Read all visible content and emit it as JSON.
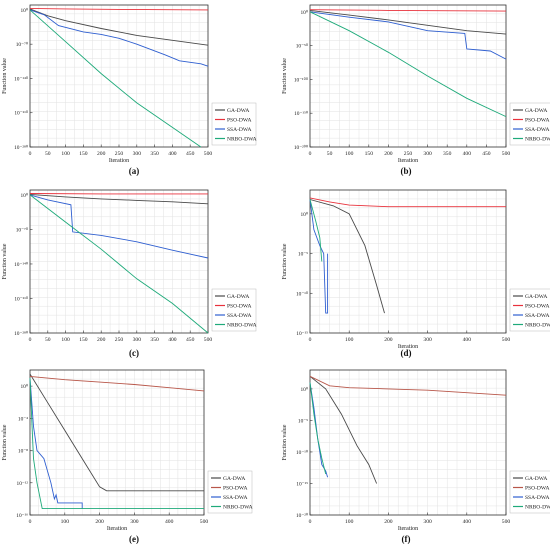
{
  "chart_data": [
    {
      "panel_label": "(a)",
      "type": "line",
      "xlabel": "Iteration",
      "ylabel": "Function value",
      "yscale": "log",
      "xlim": [
        0,
        500
      ],
      "ylim_exp": [
        -280,
        10
      ],
      "x_ticks": [
        "0",
        "50",
        "100",
        "150",
        "200",
        "250",
        "300",
        "350",
        "400",
        "450",
        "500"
      ],
      "y_ticks": [
        {
          "exp": 0,
          "label": "10⁰"
        },
        {
          "exp": -70,
          "label": "10⁻⁷⁰"
        },
        {
          "exp": -140,
          "label": "10⁻¹⁴⁰"
        },
        {
          "exp": -210,
          "label": "10⁻²¹⁰"
        },
        {
          "exp": -280,
          "label": "10⁻²⁸⁰"
        }
      ],
      "grid": true,
      "legend_position": "bottom-right",
      "series": [
        {
          "name": "GA-DWA",
          "color": "#4a4a4a",
          "points": [
            [
              0,
              2
            ],
            [
              50,
              -12
            ],
            [
              100,
              -22
            ],
            [
              200,
              -38
            ],
            [
              300,
              -52
            ],
            [
              400,
              -62
            ],
            [
              500,
              -72
            ]
          ]
        },
        {
          "name": "PSO-DWA",
          "color": "#e8323c",
          "points": [
            [
              0,
              3
            ],
            [
              100,
              2
            ],
            [
              250,
              1
            ],
            [
              500,
              0
            ]
          ]
        },
        {
          "name": "SSA-DWA",
          "color": "#2f5fd0",
          "points": [
            [
              0,
              0
            ],
            [
              40,
              -10
            ],
            [
              80,
              -32
            ],
            [
              150,
              -45
            ],
            [
              200,
              -50
            ],
            [
              250,
              -58
            ],
            [
              300,
              -70
            ],
            [
              380,
              -92
            ],
            [
              420,
              -104
            ],
            [
              480,
              -110
            ],
            [
              500,
              -115
            ]
          ]
        },
        {
          "name": "NRBO-DWA",
          "color": "#1faa7a",
          "points": [
            [
              0,
              0
            ],
            [
              100,
              -65
            ],
            [
              200,
              -130
            ],
            [
              300,
              -190
            ],
            [
              400,
              -240
            ],
            [
              480,
              -280
            ]
          ]
        }
      ]
    },
    {
      "panel_label": "(b)",
      "type": "line",
      "xlabel": "Iteration",
      "ylabel": "Function value",
      "yscale": "log",
      "xlim": [
        0,
        500
      ],
      "ylim_exp": [
        -200,
        10
      ],
      "x_ticks": [
        "0",
        "50",
        "100",
        "150",
        "200",
        "250",
        "300",
        "350",
        "400",
        "450",
        "500"
      ],
      "y_ticks": [
        {
          "exp": 0,
          "label": "10⁰"
        },
        {
          "exp": -50,
          "label": "10⁻⁵⁰"
        },
        {
          "exp": -100,
          "label": "10⁻¹⁰⁰"
        },
        {
          "exp": -150,
          "label": "10⁻¹⁵⁰"
        },
        {
          "exp": -200,
          "label": "10⁻²⁰⁰"
        }
      ],
      "grid": true,
      "legend_position": "bottom-right",
      "series": [
        {
          "name": "GA-DWA",
          "color": "#4a4a4a",
          "points": [
            [
              0,
              2
            ],
            [
              100,
              -5
            ],
            [
              200,
              -12
            ],
            [
              300,
              -20
            ],
            [
              400,
              -28
            ],
            [
              500,
              -33
            ]
          ]
        },
        {
          "name": "PSO-DWA",
          "color": "#e8323c",
          "points": [
            [
              0,
              3
            ],
            [
              200,
              2
            ],
            [
              500,
              1
            ]
          ]
        },
        {
          "name": "SSA-DWA",
          "color": "#2f5fd0",
          "points": [
            [
              0,
              0
            ],
            [
              100,
              -8
            ],
            [
              200,
              -15
            ],
            [
              300,
              -28
            ],
            [
              395,
              -32
            ],
            [
              400,
              -55
            ],
            [
              460,
              -58
            ],
            [
              500,
              -70
            ]
          ]
        },
        {
          "name": "NRBO-DWA",
          "color": "#1faa7a",
          "points": [
            [
              0,
              0
            ],
            [
              100,
              -28
            ],
            [
              200,
              -60
            ],
            [
              300,
              -95
            ],
            [
              400,
              -128
            ],
            [
              500,
              -155
            ]
          ]
        }
      ]
    },
    {
      "panel_label": "(c)",
      "type": "line",
      "xlabel": "",
      "ylabel": "Function value",
      "yscale": "log",
      "xlim": [
        0,
        500
      ],
      "ylim_exp": [
        -280,
        10
      ],
      "x_ticks": [
        "0",
        "50",
        "100",
        "150",
        "200",
        "250",
        "300",
        "350",
        "400",
        "450",
        "500"
      ],
      "y_ticks": [
        {
          "exp": 0,
          "label": "10⁰"
        },
        {
          "exp": -70,
          "label": "10⁻⁷⁰"
        },
        {
          "exp": -140,
          "label": "10⁻¹⁴⁰"
        },
        {
          "exp": -210,
          "label": "10⁻²¹⁰"
        },
        {
          "exp": -280,
          "label": "10⁻²⁸⁰"
        }
      ],
      "grid": true,
      "legend_position": "bottom-right",
      "series": [
        {
          "name": "GA-DWA",
          "color": "#4a4a4a",
          "points": [
            [
              0,
              1
            ],
            [
              100,
              -4
            ],
            [
              200,
              -8
            ],
            [
              300,
              -11
            ],
            [
              400,
              -14
            ],
            [
              500,
              -18
            ]
          ]
        },
        {
          "name": "PSO-DWA",
          "color": "#e8323c",
          "points": [
            [
              0,
              3
            ],
            [
              200,
              2
            ],
            [
              500,
              2
            ]
          ]
        },
        {
          "name": "SSA-DWA",
          "color": "#2f5fd0",
          "points": [
            [
              0,
              0
            ],
            [
              50,
              -10
            ],
            [
              115,
              -20
            ],
            [
              120,
              -75
            ],
            [
              200,
              -82
            ],
            [
              300,
              -95
            ],
            [
              400,
              -112
            ],
            [
              500,
              -128
            ]
          ]
        },
        {
          "name": "NRBO-DWA",
          "color": "#1faa7a",
          "points": [
            [
              0,
              0
            ],
            [
              100,
              -55
            ],
            [
              200,
              -110
            ],
            [
              300,
              -170
            ],
            [
              400,
              -220
            ],
            [
              500,
              -280
            ]
          ]
        }
      ]
    },
    {
      "panel_label": "(d)",
      "type": "line",
      "xlabel": "Iteration",
      "ylabel": "Function value",
      "yscale": "log",
      "xlim": [
        0,
        500
      ],
      "ylim_exp": [
        -15,
        3
      ],
      "x_ticks": [
        "0",
        "100",
        "200",
        "300",
        "400",
        "500"
      ],
      "y_ticks": [
        {
          "exp": 0,
          "label": "10⁰"
        },
        {
          "exp": -5,
          "label": "10⁻⁵"
        },
        {
          "exp": -10,
          "label": "10⁻¹⁰"
        },
        {
          "exp": -15,
          "label": "10⁻¹⁵"
        }
      ],
      "grid": true,
      "legend_position": "bottom-right",
      "series": [
        {
          "name": "GA-DWA",
          "color": "#4a4a4a",
          "points": [
            [
              0,
              1.8
            ],
            [
              60,
              1.0
            ],
            [
              100,
              0
            ],
            [
              140,
              -4
            ],
            [
              170,
              -9
            ],
            [
              190,
              -12.5
            ]
          ]
        },
        {
          "name": "PSO-DWA",
          "color": "#e8323c",
          "points": [
            [
              0,
              2
            ],
            [
              50,
              1.5
            ],
            [
              100,
              1.1
            ],
            [
              200,
              0.9
            ],
            [
              500,
              0.9
            ]
          ]
        },
        {
          "name": "SSA-DWA",
          "color": "#2f5fd0",
          "points": [
            [
              0,
              1.8
            ],
            [
              10,
              -2
            ],
            [
              25,
              -4
            ],
            [
              35,
              -5
            ],
            [
              40,
              -12.5
            ],
            [
              45,
              -12.5
            ],
            [
              45,
              -5
            ]
          ]
        },
        {
          "name": "NRBO-DWA",
          "color": "#1faa7a",
          "points": [
            [
              0,
              1.8
            ],
            [
              15,
              -1
            ],
            [
              25,
              -3
            ],
            [
              30,
              -6
            ]
          ]
        }
      ]
    },
    {
      "panel_label": "(e)",
      "type": "line",
      "xlabel": "Iteration",
      "ylabel": "Function value",
      "yscale": "log",
      "xlim": [
        0,
        500
      ],
      "ylim_exp": [
        -16,
        2
      ],
      "x_ticks": [
        "0",
        "100",
        "200",
        "300",
        "400",
        "500"
      ],
      "y_ticks": [
        {
          "exp": 0,
          "label": "10⁰"
        },
        {
          "exp": -4,
          "label": "10⁻⁴"
        },
        {
          "exp": -8,
          "label": "10⁻⁸"
        },
        {
          "exp": -12,
          "label": "10⁻¹²"
        },
        {
          "exp": -16,
          "label": "10⁻¹⁶"
        }
      ],
      "grid": true,
      "legend_position": "bottom-right",
      "series": [
        {
          "name": "GA-DWA",
          "color": "#4a4a4a",
          "points": [
            [
              0,
              1.5
            ],
            [
              50,
              -2
            ],
            [
              100,
              -5.5
            ],
            [
              150,
              -9
            ],
            [
              200,
              -12.5
            ],
            [
              220,
              -13
            ],
            [
              500,
              -13
            ]
          ]
        },
        {
          "name": "PSO-DWA",
          "color": "#b8574a",
          "points": [
            [
              0,
              1.2
            ],
            [
              100,
              0.8
            ],
            [
              200,
              0.5
            ],
            [
              300,
              0.2
            ],
            [
              400,
              -0.2
            ],
            [
              500,
              -0.6
            ]
          ]
        },
        {
          "name": "SSA-DWA",
          "color": "#2f5fd0",
          "points": [
            [
              0,
              1
            ],
            [
              10,
              -5
            ],
            [
              20,
              -8
            ],
            [
              40,
              -9
            ],
            [
              60,
              -12
            ],
            [
              70,
              -14
            ],
            [
              75,
              -13.5
            ],
            [
              80,
              -14.5
            ],
            [
              150,
              -14.5
            ],
            [
              150,
              -15.2
            ]
          ]
        },
        {
          "name": "NRBO-DWA",
          "color": "#1faa7a",
          "points": [
            [
              0,
              1
            ],
            [
              5,
              -4
            ],
            [
              10,
              -9
            ],
            [
              20,
              -12
            ],
            [
              35,
              -15.2
            ],
            [
              500,
              -15.2
            ]
          ]
        }
      ]
    },
    {
      "panel_label": "(f)",
      "type": "line",
      "xlabel": "Iteration",
      "ylabel": "Function value",
      "yscale": "log",
      "xlim": [
        0,
        500
      ],
      "ylim_exp": [
        -20,
        3
      ],
      "x_ticks": [
        "0",
        "100",
        "200",
        "300",
        "400",
        "500"
      ],
      "y_ticks": [
        {
          "exp": 0,
          "label": "10⁰"
        },
        {
          "exp": -5,
          "label": "10⁻⁵"
        },
        {
          "exp": -10,
          "label": "10⁻¹⁰"
        },
        {
          "exp": -15,
          "label": "10⁻¹⁵"
        },
        {
          "exp": -20,
          "label": "10⁻²⁰"
        }
      ],
      "grid": true,
      "legend_position": "bottom-right",
      "series": [
        {
          "name": "GA-DWA",
          "color": "#4a4a4a",
          "points": [
            [
              0,
              2
            ],
            [
              40,
              0
            ],
            [
              80,
              -4
            ],
            [
              120,
              -9
            ],
            [
              150,
              -12
            ],
            [
              170,
              -15
            ]
          ]
        },
        {
          "name": "PSO-DWA",
          "color": "#b8574a",
          "points": [
            [
              0,
              2
            ],
            [
              50,
              0.5
            ],
            [
              100,
              0.2
            ],
            [
              200,
              0
            ],
            [
              300,
              -0.2
            ],
            [
              400,
              -0.6
            ],
            [
              500,
              -1
            ]
          ]
        },
        {
          "name": "SSA-DWA",
          "color": "#2f5fd0",
          "points": [
            [
              0,
              1
            ],
            [
              10,
              -3
            ],
            [
              20,
              -8
            ],
            [
              30,
              -12
            ],
            [
              40,
              -13
            ],
            [
              45,
              -14
            ]
          ]
        },
        {
          "name": "NRBO-DWA",
          "color": "#1faa7a",
          "points": [
            [
              0,
              1
            ],
            [
              10,
              -4
            ],
            [
              20,
              -8
            ],
            [
              30,
              -11
            ],
            [
              40,
              -13.5
            ]
          ]
        }
      ]
    }
  ]
}
